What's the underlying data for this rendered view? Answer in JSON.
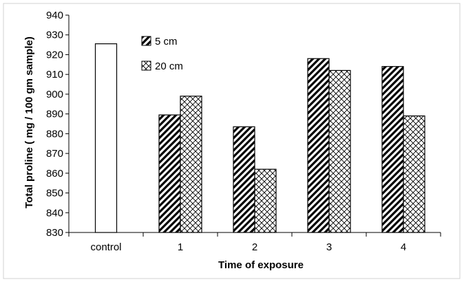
{
  "chart_data": {
    "type": "bar",
    "title": "",
    "xlabel": "Time of exposure",
    "ylabel": "Total proline  ( mg / 100 gm sample)",
    "ylim": [
      830,
      940
    ],
    "yticks": [
      830,
      840,
      850,
      860,
      870,
      880,
      890,
      900,
      910,
      920,
      930,
      940
    ],
    "categories": [
      "control",
      "1",
      "2",
      "3",
      "4"
    ],
    "grid": false,
    "legend_position": "top-left",
    "series": [
      {
        "name": "control",
        "pattern": "none",
        "values": [
          925.5,
          null,
          null,
          null,
          null
        ]
      },
      {
        "name": "5 cm",
        "pattern": "diagonal-hatch",
        "values": [
          null,
          889.5,
          883.5,
          918,
          914
        ]
      },
      {
        "name": "20 cm",
        "pattern": "crosshatch",
        "values": [
          null,
          899,
          862,
          912,
          889
        ]
      }
    ],
    "legend": [
      {
        "label": "5 cm",
        "pattern": "diagonal-hatch"
      },
      {
        "label": "20 cm",
        "pattern": "crosshatch"
      }
    ]
  }
}
